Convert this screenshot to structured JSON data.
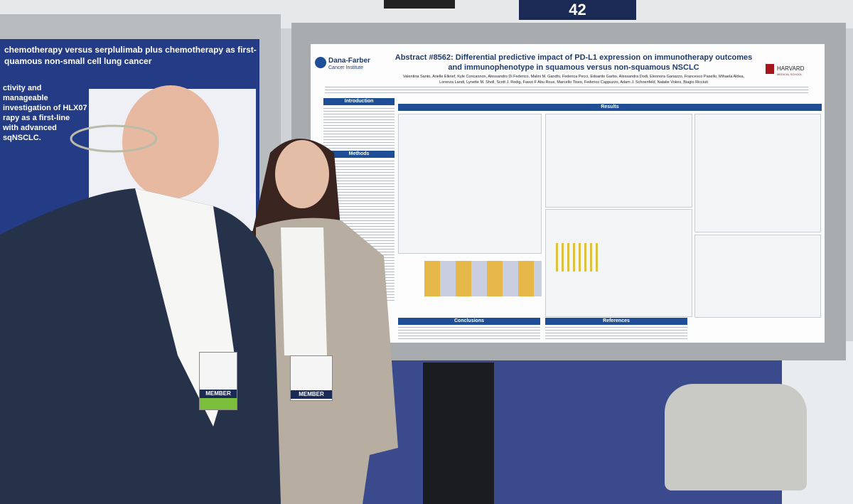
{
  "booth_sign": {
    "number": "42"
  },
  "left_poster": {
    "title": "chemotherapy versus serplulimab plus chemotherapy as first-",
    "title_line2": "quamous non-small cell lung cancer",
    "highlight": [
      "ctivity and manageable",
      "investigation of HLX07",
      "rapy as a first-line",
      "with advanced sqNSCLC."
    ]
  },
  "main_poster": {
    "institution": "Dana-Farber",
    "institution_sub": "Cancer Institute",
    "title": "Abstract #8562: Differential predictive impact of PD-L1 expression on immunotherapy outcomes and immunophenotype in squamous versus non-squamous NSCLC",
    "harvard": "HARVARD",
    "harvard_sub": "MEDICAL SCHOOL",
    "authors": "Valentina Santo, Arielle Elkrief, Kyle Concannon, Alessandro Di Federico, Malini M. Gandhi, Federica Pecci, Edoardo Garbo, Alessandra Dodi, Eleonora Gariazzo, Francesco Pasello, Mihaela Aldea, Lorenza Landi, Lynette M. Sholl, Scott J. Rodig, Fawzi F Abu Rous, Marcello Tiseo, Federico Cappuzzo, Adam J. Schoenfeld, Natalie Vokes, Biagio Ricciuti",
    "sections": [
      "Introduction",
      "Methods",
      "Results",
      "Conclusions",
      "References"
    ]
  },
  "badges": [
    "MEMBER",
    "MEMBER"
  ]
}
